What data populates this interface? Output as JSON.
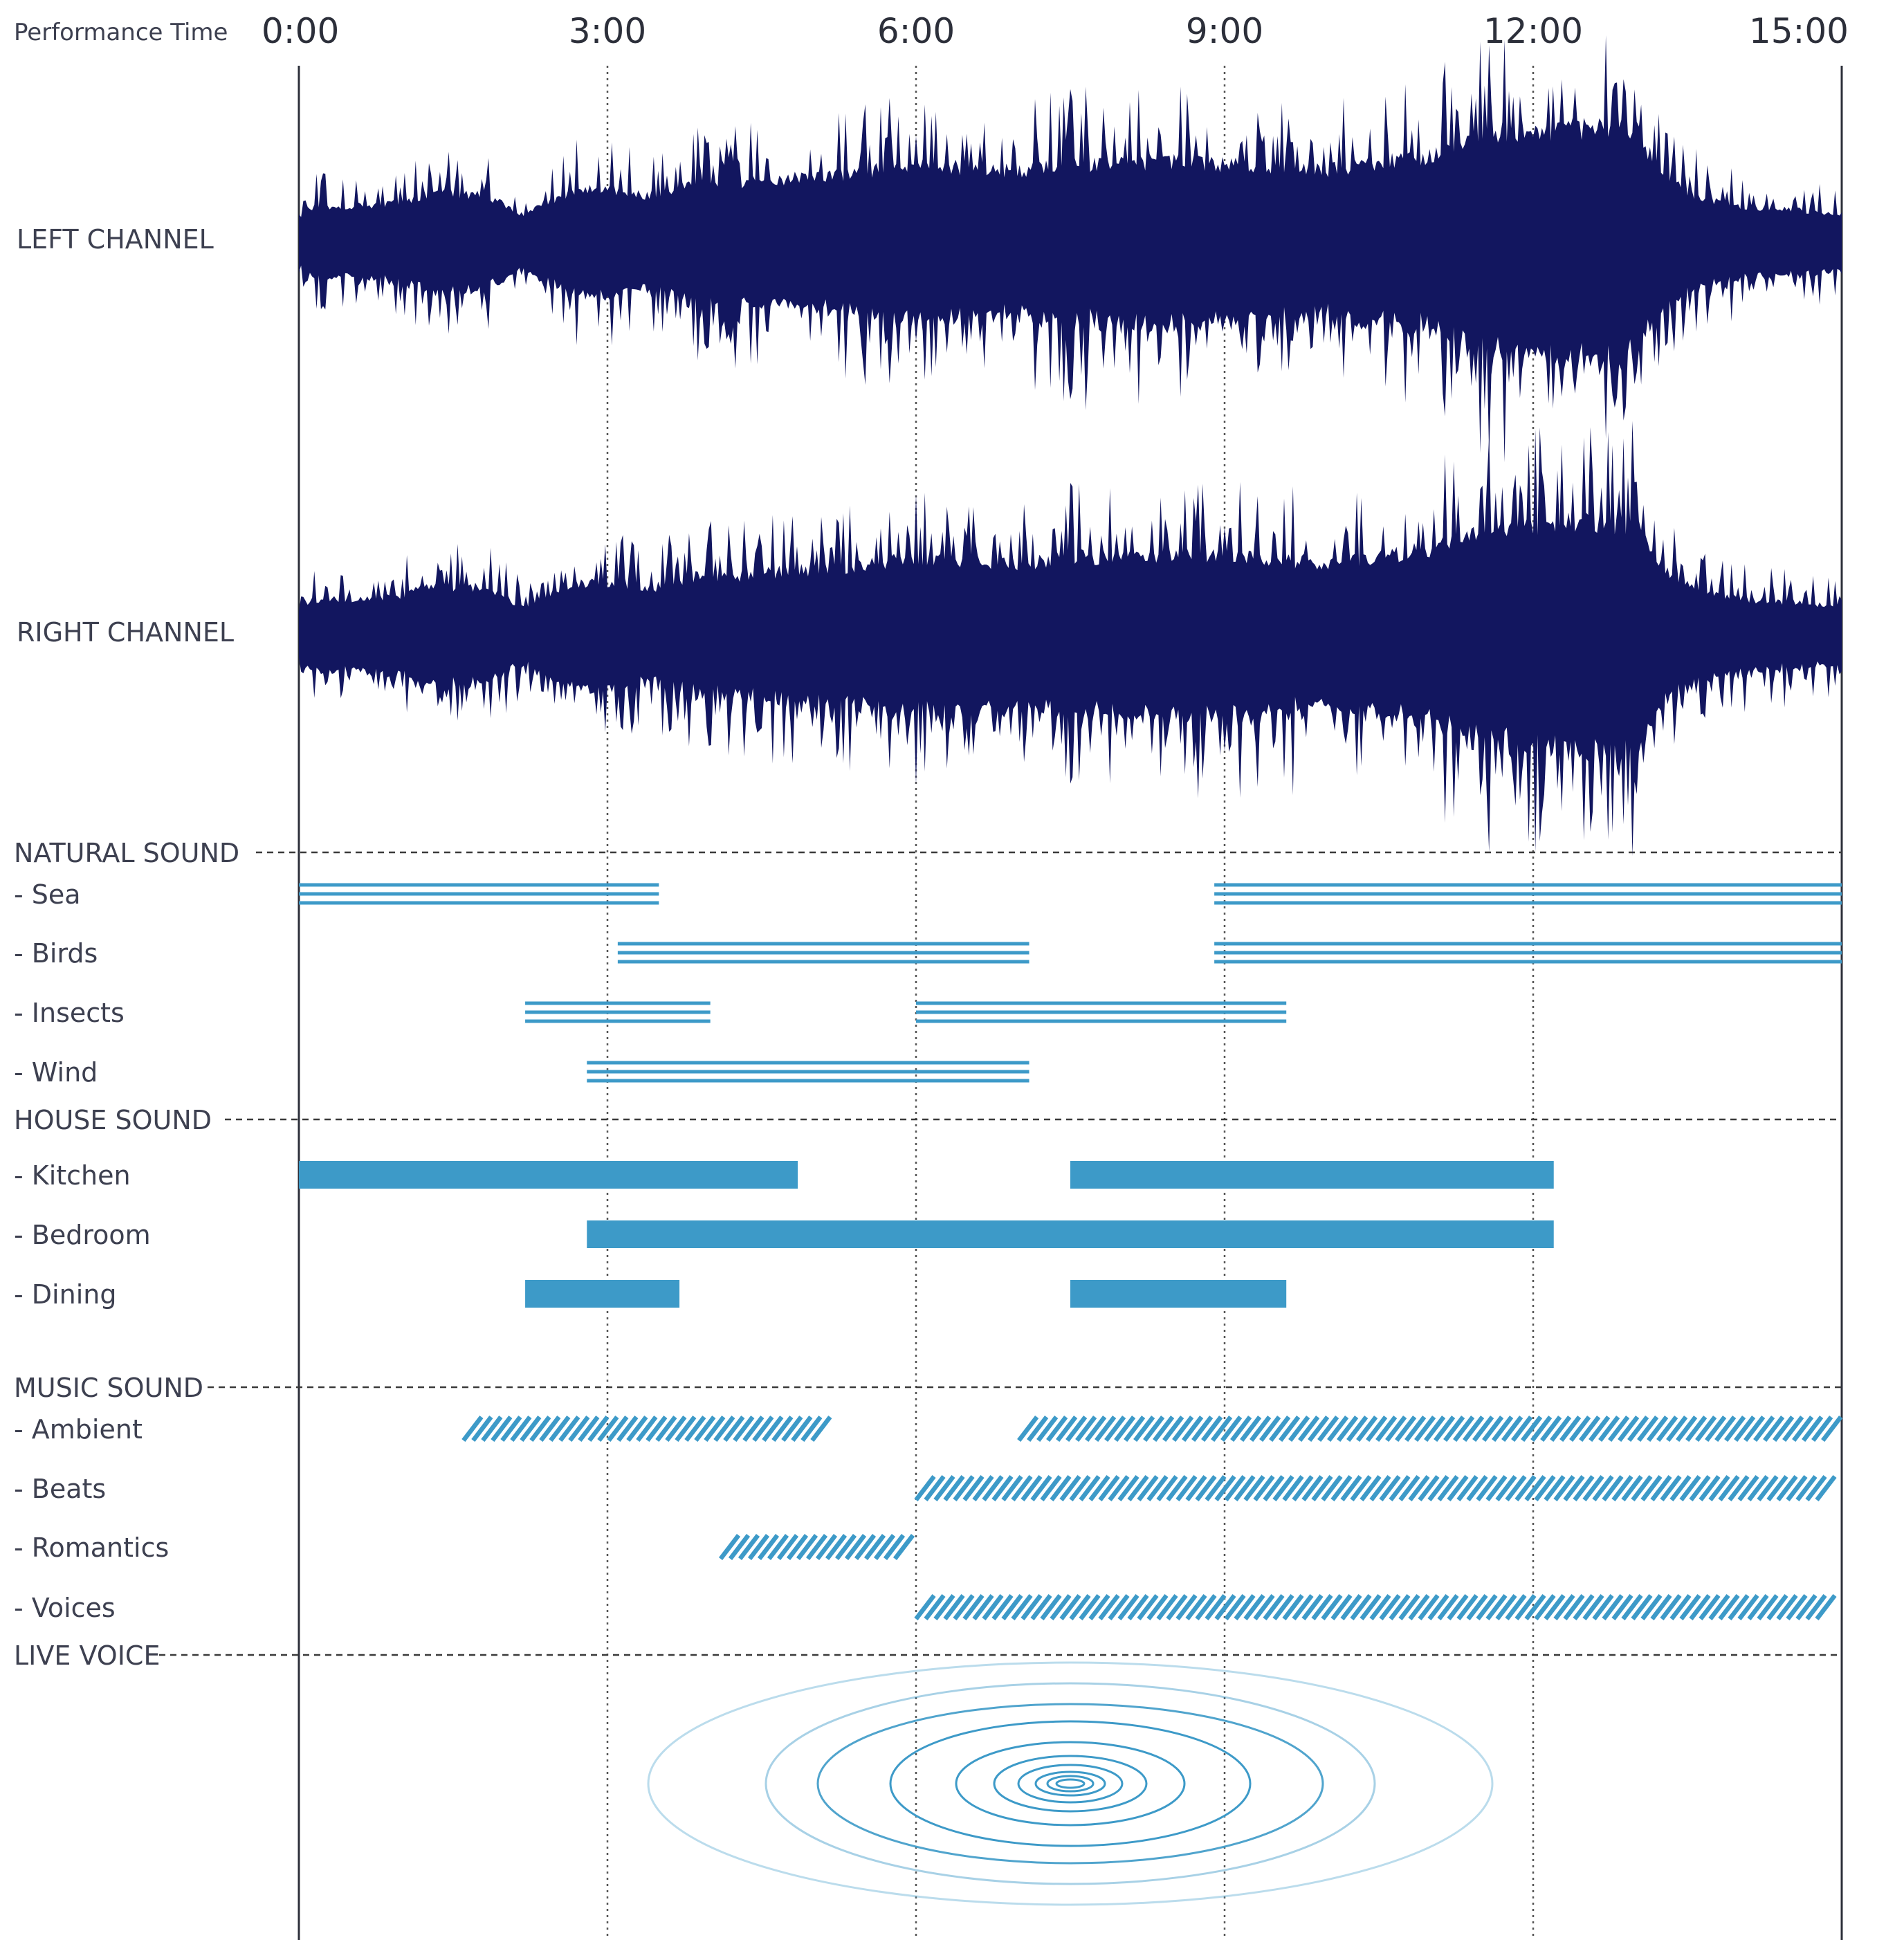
{
  "chart_data": {
    "type": "timeline",
    "header_label": "Performance  Time",
    "x_ticks": [
      "0:00",
      "3:00",
      "6:00",
      "9:00",
      "12:00",
      "15:00"
    ],
    "x_range_minutes": [
      0,
      15
    ],
    "colors": {
      "waveform": "#12165f",
      "track": "#3d9ac8",
      "axis": "#2c2f3a",
      "grid": "#555555",
      "ripple": "#3d9ac8"
    },
    "channels": [
      {
        "id": "left",
        "label": "LEFT CHANNEL"
      },
      {
        "id": "right",
        "label": "RIGHT CHANNEL"
      }
    ],
    "groups": [
      {
        "label": "NATURAL SOUND",
        "style": "triple-line",
        "tracks": [
          {
            "label": "- Sea",
            "segments": [
              [
                0.0,
                3.5
              ],
              [
                8.9,
                15.0
              ]
            ]
          },
          {
            "label": " - Birds",
            "segments": [
              [
                3.1,
                7.1
              ],
              [
                8.9,
                15.0
              ]
            ]
          },
          {
            "label": " - Insects",
            "segments": [
              [
                2.2,
                4.0
              ],
              [
                6.0,
                9.6
              ]
            ]
          },
          {
            "label": " - Wind",
            "segments": [
              [
                2.8,
                7.1
              ]
            ]
          }
        ]
      },
      {
        "label": "HOUSE SOUND",
        "style": "solid",
        "tracks": [
          {
            "label": "- Kitchen",
            "segments": [
              [
                0.0,
                4.85
              ],
              [
                7.5,
                12.2
              ]
            ]
          },
          {
            "label": "- Bedroom",
            "segments": [
              [
                2.8,
                12.2
              ]
            ]
          },
          {
            "label": "- Dining",
            "segments": [
              [
                2.2,
                3.7
              ],
              [
                7.5,
                9.6
              ]
            ]
          }
        ]
      },
      {
        "label": "MUSIC SOUND",
        "style": "hatched",
        "tracks": [
          {
            "label": "- Ambient",
            "segments": [
              [
                1.6,
                5.2
              ],
              [
                7.0,
                15.0
              ]
            ]
          },
          {
            "label": "- Beats",
            "segments": [
              [
                6.0,
                15.0
              ]
            ]
          },
          {
            "label": "- Romantics",
            "segments": [
              [
                4.1,
                6.0
              ]
            ]
          },
          {
            "label": "- Voices",
            "segments": [
              [
                6.0,
                15.0
              ]
            ]
          }
        ]
      },
      {
        "label": "LIVE VOICE",
        "style": "ripple",
        "tracks": []
      }
    ],
    "live_voice_center_minute": 7.5
  }
}
